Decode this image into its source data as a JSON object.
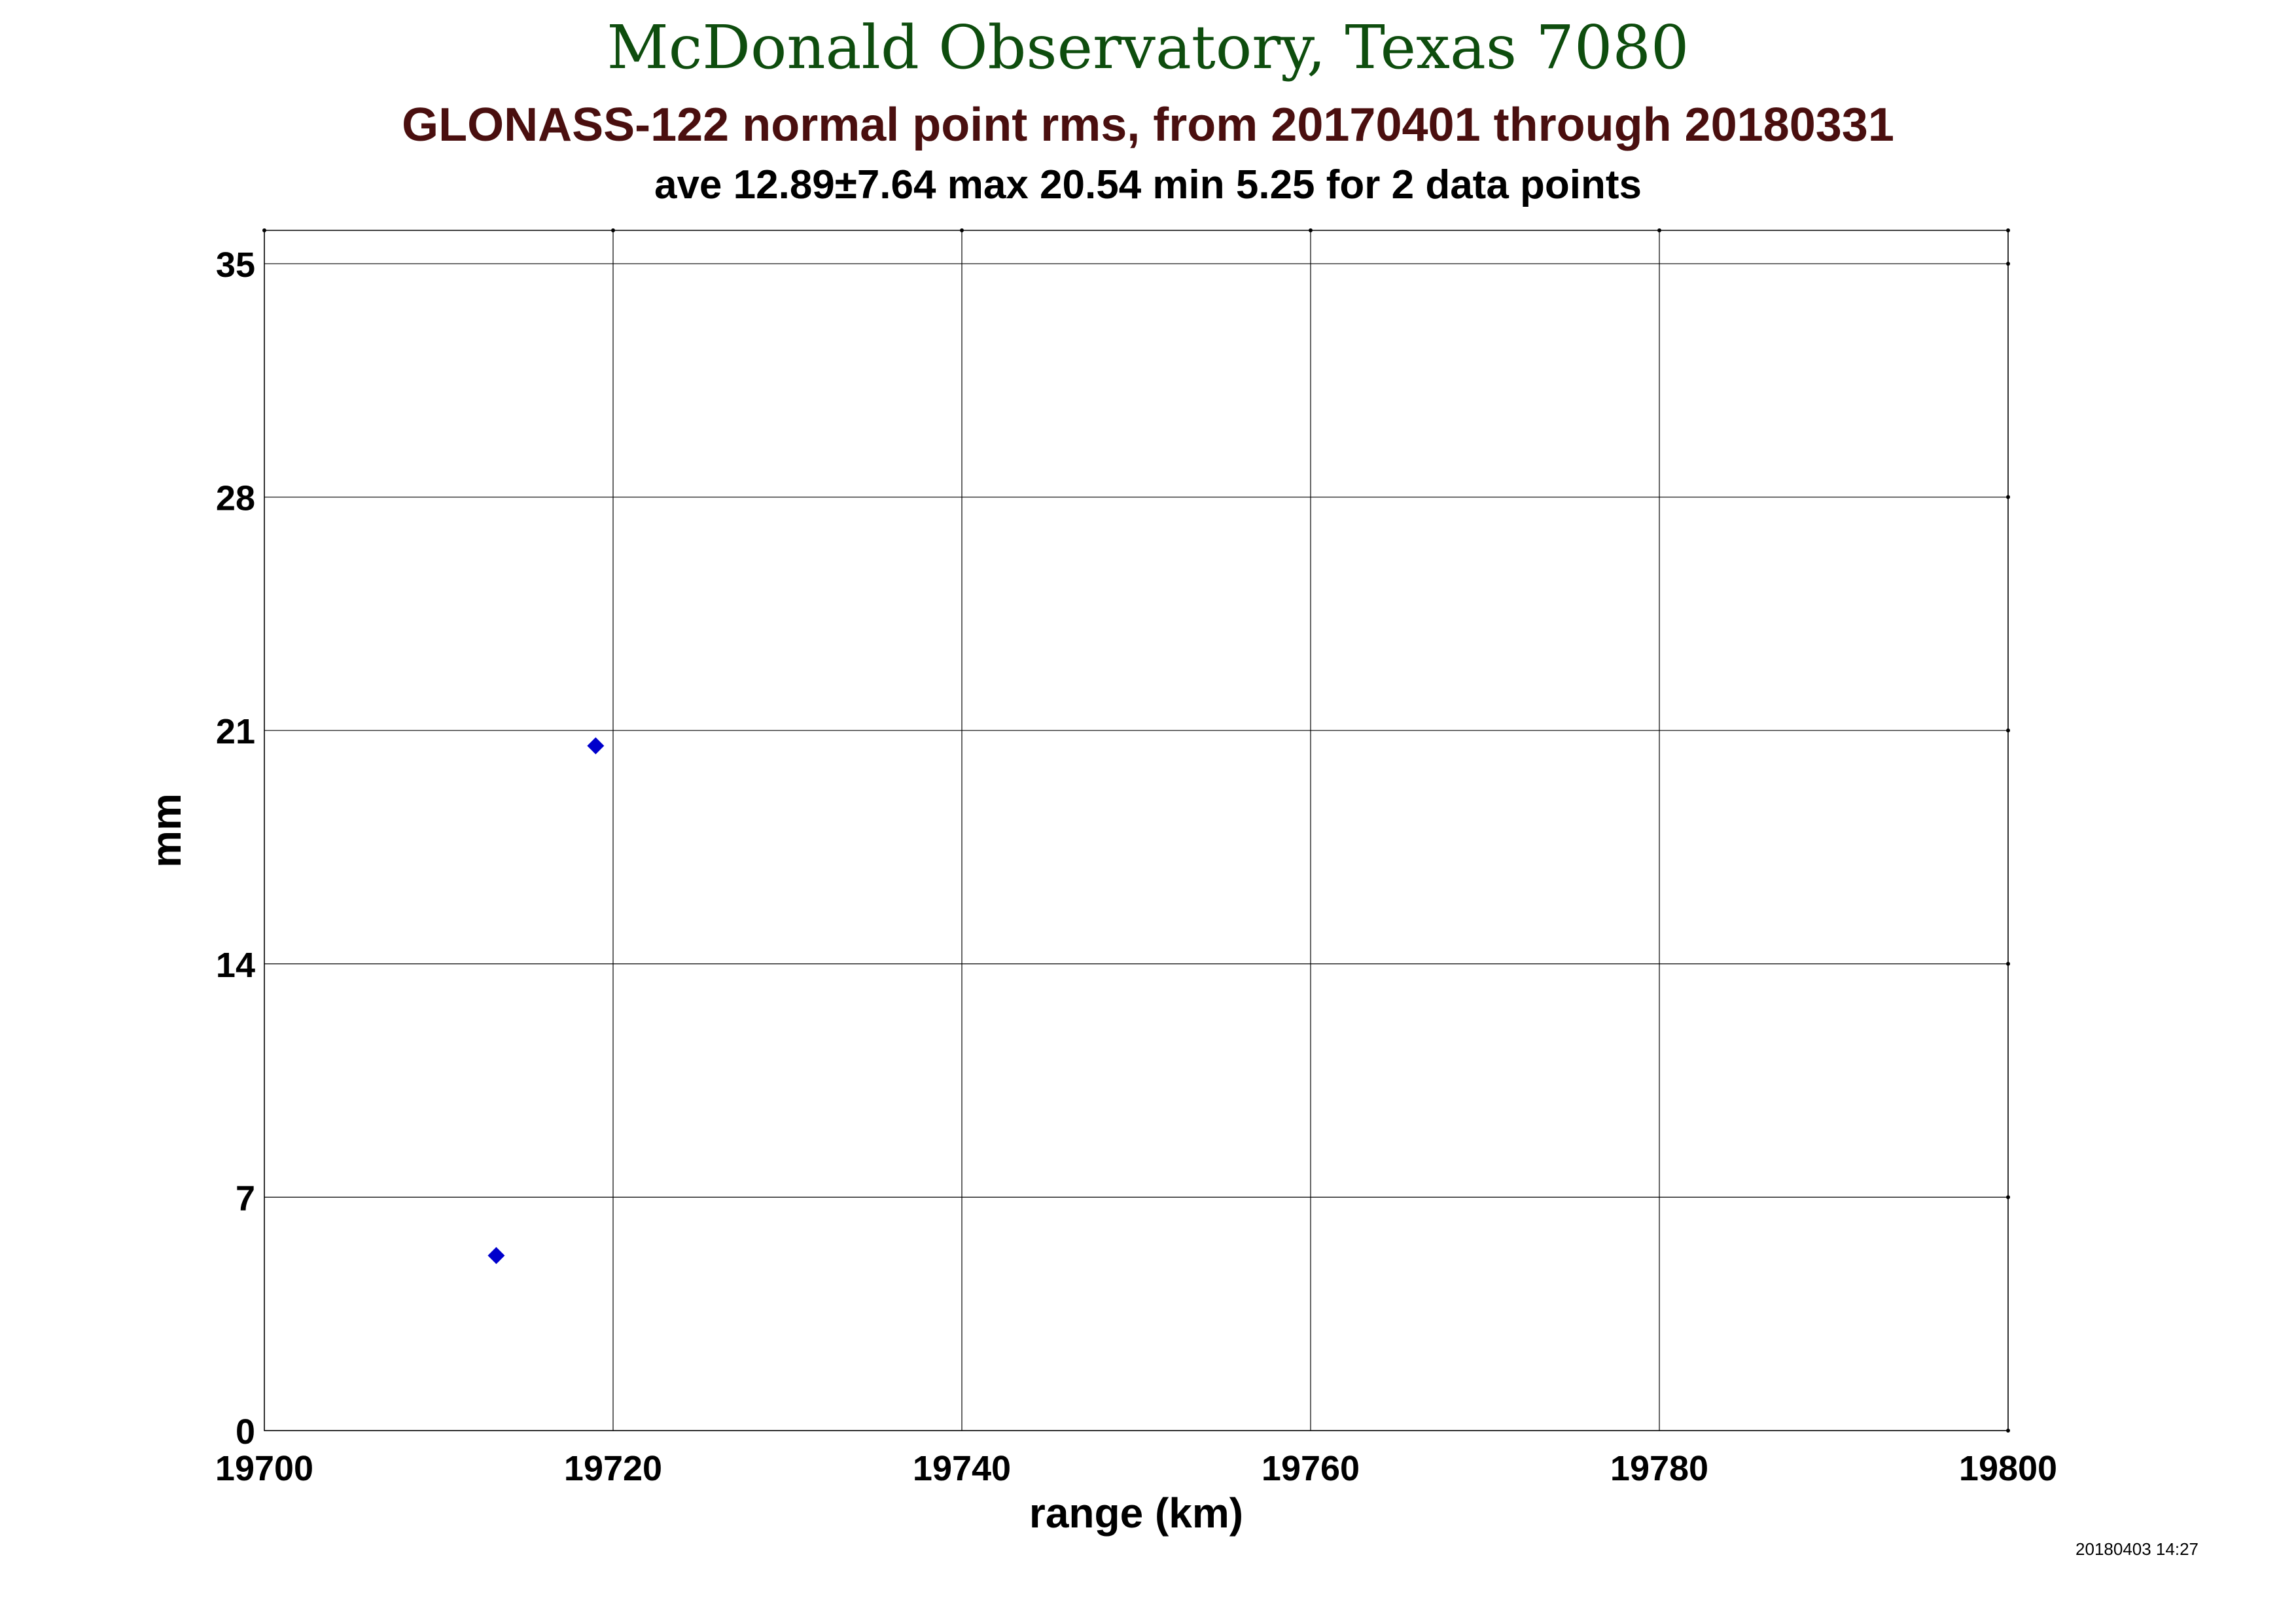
{
  "title": "McDonald Observatory, Texas 7080",
  "subtitle": "GLONASS-122 normal point rms, from 20170401 through 20180331",
  "stats_line": "ave 12.89±7.64 max 20.54 min 5.25 for 2 data points",
  "timestamp": "20180403 14:27",
  "chart_data": {
    "type": "scatter",
    "title": "McDonald Observatory, Texas 7080",
    "xlabel": "range (km)",
    "ylabel": "mm",
    "xlim": [
      19700,
      19800
    ],
    "ylim": [
      0,
      36
    ],
    "x_ticks": [
      19700,
      19720,
      19740,
      19760,
      19780,
      19800
    ],
    "y_ticks": [
      0,
      7,
      14,
      21,
      28,
      35
    ],
    "grid": true,
    "marker": "diamond",
    "marker_color": "#0000cc",
    "points": [
      {
        "x": 19713.3,
        "y": 5.25
      },
      {
        "x": 19719.0,
        "y": 20.54
      }
    ]
  }
}
